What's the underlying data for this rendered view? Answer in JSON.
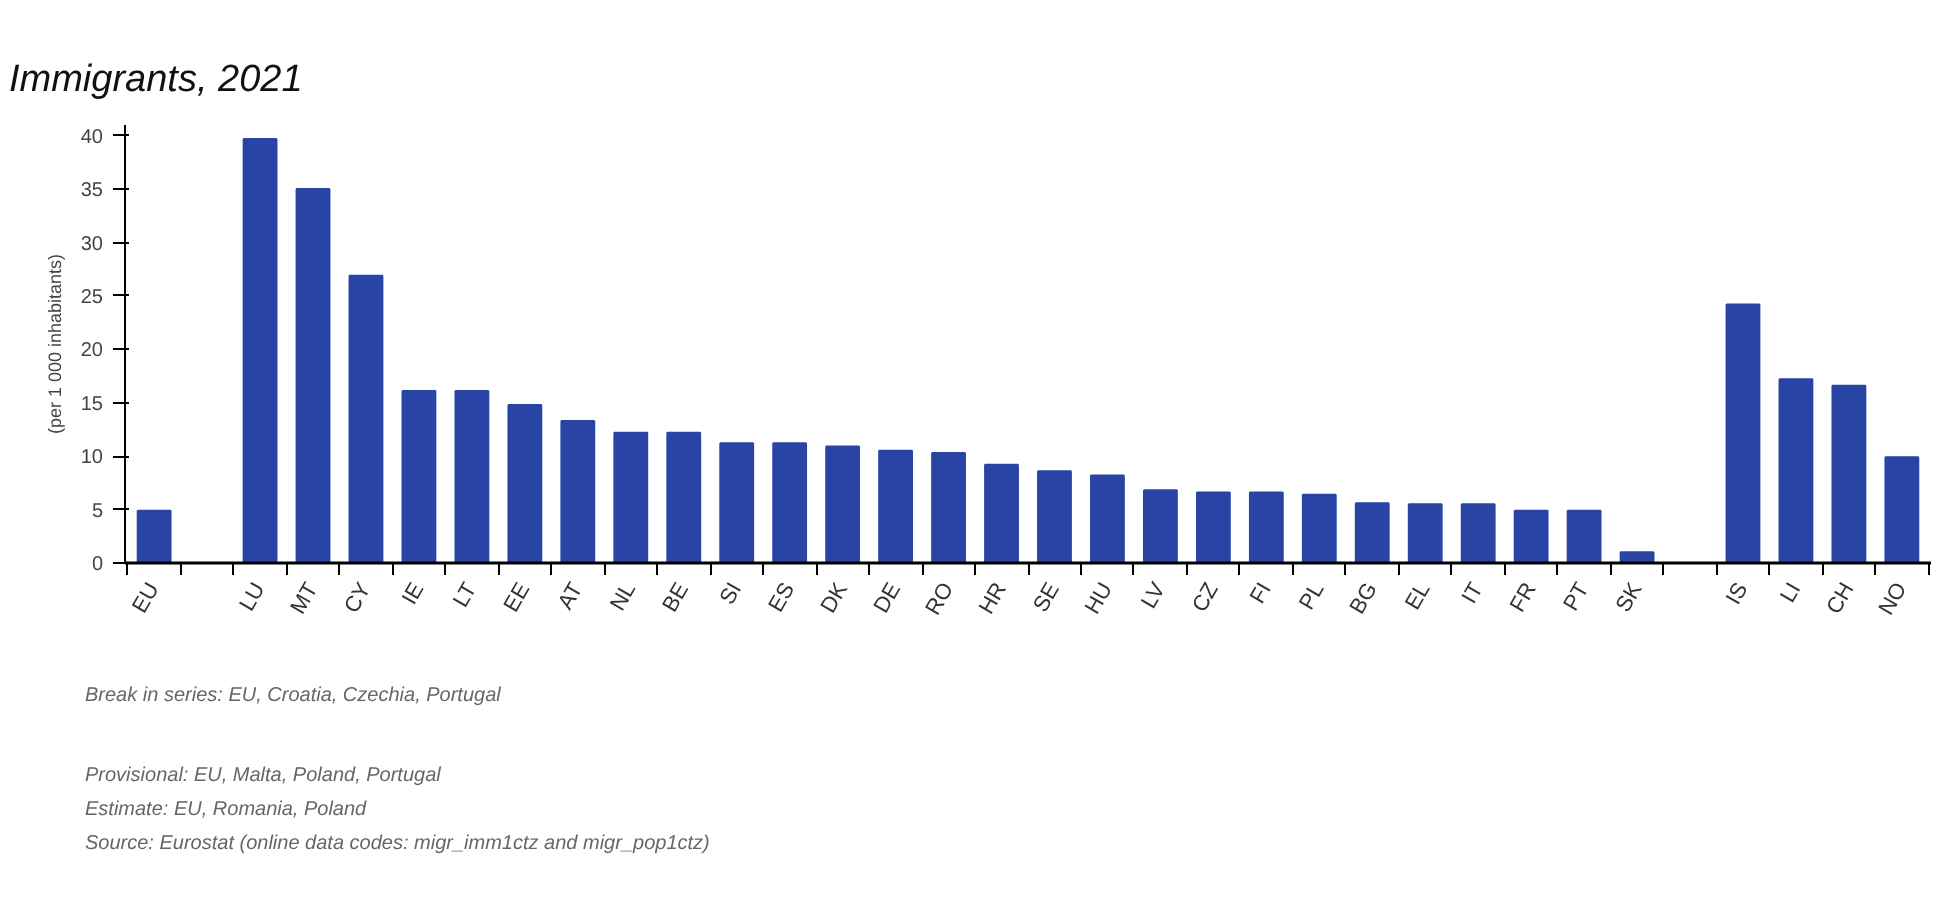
{
  "chart_data": {
    "type": "bar",
    "title": "Immigrants, 2021",
    "ylabel": "(per 1 000 inhabitants)",
    "categories": [
      "EU",
      null,
      "LU",
      "MT",
      "CY",
      "IE",
      "LT",
      "EE",
      "AT",
      "NL",
      "BE",
      "SI",
      "ES",
      "DK",
      "DE",
      "RO",
      "HR",
      "SE",
      "HU",
      "LV",
      "CZ",
      "FI",
      "PL",
      "BG",
      "EL",
      "IT",
      "FR",
      "PT",
      "SK",
      null,
      "IS",
      "LI",
      "CH",
      "NO"
    ],
    "values": [
      4.9,
      null,
      39.7,
      35.0,
      26.9,
      16.1,
      16.1,
      14.8,
      13.3,
      12.2,
      12.2,
      11.2,
      11.2,
      10.9,
      10.5,
      10.3,
      9.2,
      8.6,
      8.2,
      6.8,
      6.6,
      6.6,
      6.4,
      5.6,
      5.5,
      5.5,
      4.9,
      4.9,
      1.0,
      null,
      24.2,
      17.2,
      16.6,
      9.9
    ],
    "color": "#2845a6",
    "ylim": [
      0,
      41
    ],
    "yticks": [
      0,
      5,
      10,
      15,
      20,
      25,
      30,
      35,
      40
    ],
    "grid": false,
    "annotations": [
      "Break in series: EU, Croatia, Czechia, Portugal",
      "Provisional: EU, Malta, Poland, Portugal",
      "Estimate: EU, Romania, Poland",
      "Source: Eurostat (online data codes: migr_imm1ctz and migr_pop1ctz)"
    ]
  }
}
